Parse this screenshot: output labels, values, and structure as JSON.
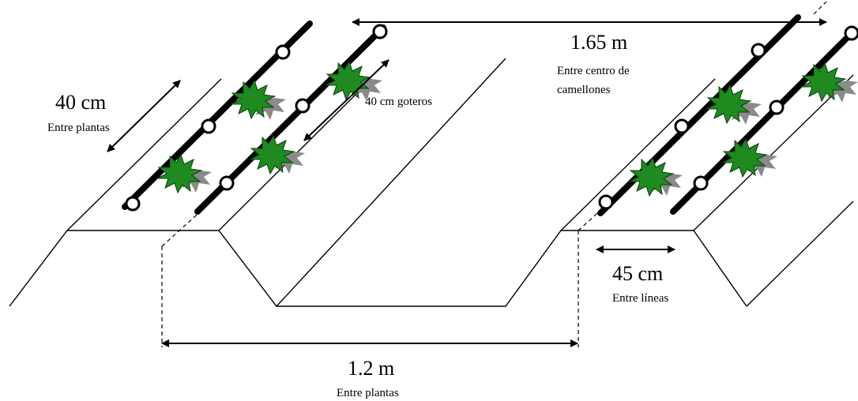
{
  "labels": {
    "plant_spacing": {
      "value": "40 cm",
      "caption": "Entre plantas"
    },
    "dripper_spacing": {
      "value": "40 cm goteros"
    },
    "bed_center": {
      "value": "1.65 m",
      "caption_line1": "Entre centro de",
      "caption_line2": "camellones"
    },
    "line_spacing": {
      "value": "45 cm",
      "caption": "Entre líneas"
    },
    "bed_width": {
      "value": "1.2 m",
      "caption": "Entre plantas"
    }
  },
  "colors": {
    "outline": "#000000",
    "drip_tube": "#000000",
    "emitter_fill": "#ffffff",
    "leaf": "#1f8a1f",
    "shadow": "#8a8a8a"
  }
}
